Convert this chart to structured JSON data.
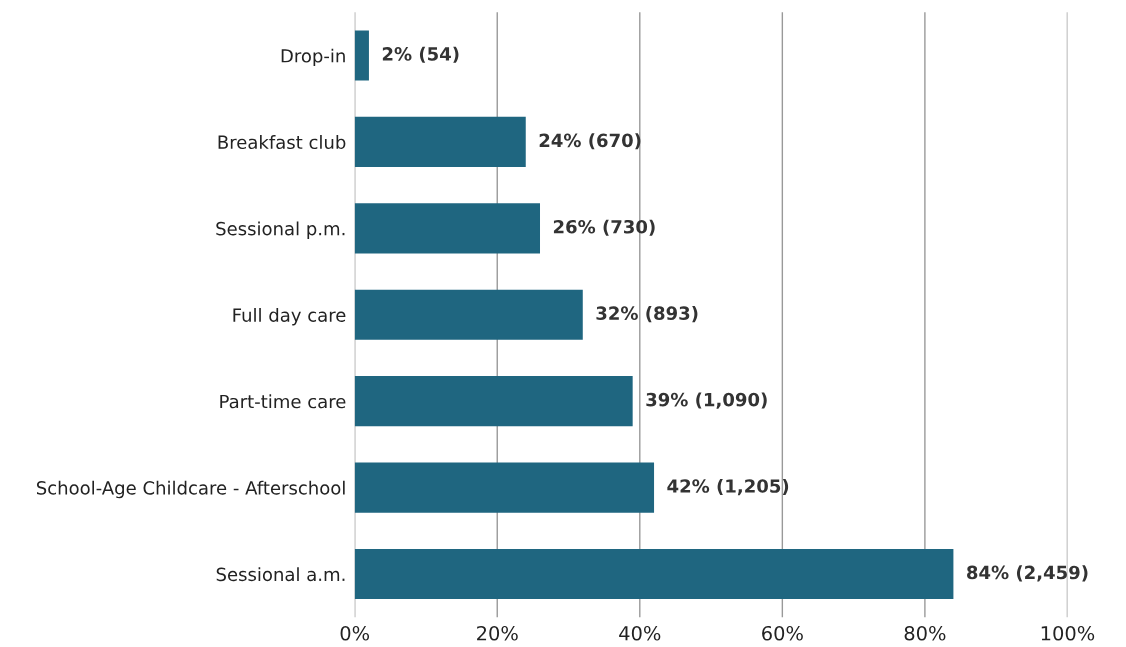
{
  "chart_data": {
    "type": "bar",
    "orientation": "horizontal",
    "categories": [
      "Drop-in",
      "Breakfast club",
      "Sessional p.m.",
      "Full day care",
      "Part-time care",
      "School-Age Childcare - Afterschool",
      "Sessional a.m."
    ],
    "values": [
      2,
      24,
      26,
      32,
      39,
      42,
      84
    ],
    "value_labels": [
      "2% (54)",
      "24% (670)",
      "26% (730)",
      "32% (893)",
      "39% (1,090)",
      "42% (1,205)",
      "84% (2,459)"
    ],
    "color": "#1f6680",
    "xlim": [
      0,
      100
    ],
    "xticks": [
      {
        "value": 0,
        "label": "0%"
      },
      {
        "value": 20,
        "label": "20%"
      },
      {
        "value": 40,
        "label": "40%"
      },
      {
        "value": 60,
        "label": "60%"
      },
      {
        "value": 80,
        "label": "80%"
      },
      {
        "value": 100,
        "label": "100%"
      }
    ],
    "grid": "x",
    "legend": false
  }
}
